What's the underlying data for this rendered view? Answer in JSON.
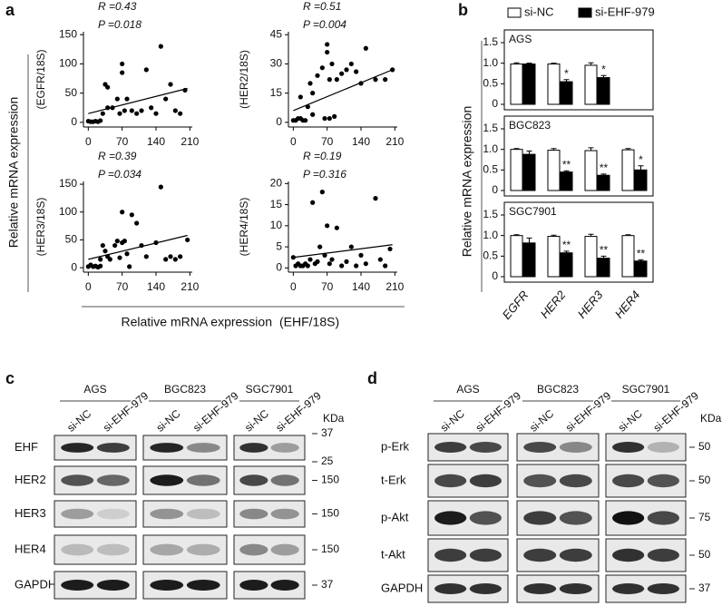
{
  "panel_labels": [
    "a",
    "b",
    "c",
    "d"
  ],
  "shared": {
    "scatter_ylabel": "Relative mRNA expression",
    "scatter_xlabel": "Relative mRNA expression",
    "scatter_xlabel_ratio": "(EHF/18S)",
    "bar_ylabel": "Relative mRNA expression"
  },
  "chart_data": [
    {
      "type": "scatter",
      "ylabel": "(EGFR/18S)",
      "annotations": [
        "R =0.43",
        "P =0.018"
      ],
      "color": "#000000",
      "x": [
        0,
        5,
        10,
        15,
        20,
        25,
        30,
        35,
        40,
        40,
        50,
        60,
        65,
        70,
        70,
        75,
        80,
        90,
        100,
        110,
        120,
        130,
        140,
        150,
        160,
        170,
        180,
        190,
        200
      ],
      "values": [
        2,
        1,
        1,
        2,
        1,
        3,
        15,
        65,
        60,
        25,
        25,
        40,
        15,
        85,
        100,
        20,
        40,
        20,
        15,
        20,
        90,
        25,
        15,
        130,
        40,
        65,
        20,
        15,
        55
      ],
      "fit": {
        "x": [
          0,
          205
        ],
        "y": [
          15,
          58
        ]
      },
      "xlim": [
        -10,
        215
      ],
      "ylim": [
        -8,
        155
      ],
      "xticks": [
        0,
        70,
        140,
        210
      ],
      "yticks": [
        0,
        50,
        100,
        150
      ]
    },
    {
      "type": "scatter",
      "ylabel": "(HER2/18S)",
      "annotations": [
        "R =0.51",
        "P =0.004"
      ],
      "color": "#000000",
      "x": [
        0,
        5,
        10,
        15,
        20,
        25,
        15,
        30,
        35,
        40,
        40,
        50,
        60,
        65,
        70,
        70,
        75,
        75,
        80,
        85,
        90,
        100,
        110,
        120,
        130,
        140,
        150,
        170,
        190,
        205
      ],
      "values": [
        1,
        1,
        2,
        2,
        1,
        1,
        13,
        8,
        20,
        4,
        15,
        24,
        28,
        2,
        40,
        36,
        2,
        22,
        30,
        3,
        22,
        25,
        27,
        30,
        26,
        20,
        38,
        22,
        22,
        27
      ],
      "fit": {
        "x": [
          0,
          205
        ],
        "y": [
          6,
          27
        ]
      },
      "xlim": [
        -10,
        215
      ],
      "ylim": [
        -2.4,
        46.5
      ],
      "xticks": [
        0,
        70,
        140,
        210
      ],
      "yticks": [
        0,
        15,
        30,
        45
      ]
    },
    {
      "type": "scatter",
      "ylabel": "(HER3/18S)",
      "annotations": [
        "R =0.39",
        "P =0.034"
      ],
      "color": "#000000",
      "x": [
        0,
        5,
        10,
        15,
        20,
        25,
        25,
        30,
        35,
        40,
        45,
        55,
        60,
        65,
        70,
        70,
        75,
        80,
        85,
        90,
        100,
        110,
        120,
        140,
        150,
        160,
        170,
        180,
        190,
        205
      ],
      "values": [
        2,
        5,
        2,
        3,
        1,
        3,
        15,
        40,
        30,
        20,
        15,
        40,
        48,
        18,
        45,
        100,
        48,
        25,
        2,
        95,
        80,
        40,
        20,
        45,
        145,
        15,
        20,
        15,
        20,
        50
      ],
      "fit": {
        "x": [
          0,
          205
        ],
        "y": [
          15,
          58
        ]
      },
      "xlim": [
        -10,
        215
      ],
      "ylim": [
        -8,
        155
      ],
      "xticks": [
        0,
        70,
        140,
        210
      ],
      "yticks": [
        0,
        50,
        100,
        150
      ]
    },
    {
      "type": "scatter",
      "ylabel": "(HER4/18S)",
      "annotations": [
        "R =0.19",
        "P =0.316"
      ],
      "color": "#000000",
      "x": [
        0,
        5,
        10,
        15,
        20,
        25,
        30,
        35,
        40,
        45,
        50,
        55,
        60,
        65,
        70,
        75,
        80,
        90,
        100,
        110,
        120,
        130,
        140,
        150,
        170,
        180,
        190,
        200
      ],
      "values": [
        2.5,
        0.5,
        1,
        0.5,
        0.5,
        1,
        0.5,
        2,
        15.5,
        1,
        1.5,
        5,
        18,
        3,
        10,
        1,
        2,
        9.5,
        0.5,
        1.5,
        5,
        0.5,
        3,
        1,
        16.5,
        2,
        0.5,
        4.5
      ],
      "fit": {
        "x": [
          0,
          205
        ],
        "y": [
          2.5,
          5.5
        ]
      },
      "xlim": [
        -10,
        215
      ],
      "ylim": [
        -1,
        20.5
      ],
      "xticks": [
        0,
        70,
        140,
        210
      ],
      "yticks": [
        0,
        5,
        10,
        15,
        20
      ]
    },
    {
      "type": "bar",
      "title": "AGS",
      "series": [
        {
          "name": "si-NC",
          "color": "#ffffff",
          "values": [
            0.98,
            0.98,
            0.95,
            null
          ],
          "errors": [
            0.03,
            0.02,
            0.06,
            null
          ]
        },
        {
          "name": "si-EHF-979",
          "color": "#000000",
          "values": [
            0.98,
            0.55,
            0.65,
            null
          ],
          "errors": [
            0.02,
            0.05,
            0.05,
            null
          ],
          "annotations": [
            null,
            "*",
            "*",
            null
          ]
        }
      ],
      "ylim": [
        0,
        1.5
      ],
      "yticks": [
        0,
        0.5,
        {
          "value": 1,
          "label": "1.0"
        },
        1.5
      ]
    },
    {
      "type": "bar",
      "title": "BGC823",
      "series": [
        {
          "color": "#ffffff",
          "values": [
            1.0,
            0.98,
            0.97,
            0.99
          ],
          "errors": [
            0.02,
            0.04,
            0.07,
            0.03
          ]
        },
        {
          "color": "#000000",
          "values": [
            0.88,
            0.45,
            0.37,
            0.5
          ],
          "errors": [
            0.08,
            0.03,
            0.03,
            0.1
          ],
          "annotations": [
            null,
            "**",
            "**",
            "*"
          ]
        }
      ],
      "ylim": [
        0,
        1.5
      ],
      "yticks": [
        0,
        0.5,
        {
          "value": 1,
          "label": "1.0"
        },
        1.5
      ]
    },
    {
      "type": "bar",
      "title": "SGC7901",
      "categories": [
        "EGFR",
        "HER2",
        "HER3",
        "HER4"
      ],
      "series": [
        {
          "color": "#ffffff",
          "values": [
            1.0,
            0.98,
            0.98,
            1.0
          ],
          "errors": [
            0.02,
            0.03,
            0.05,
            0.02
          ]
        },
        {
          "color": "#000000",
          "values": [
            0.82,
            0.58,
            0.45,
            0.38
          ],
          "errors": [
            0.12,
            0.04,
            0.05,
            0.03
          ],
          "annotations": [
            null,
            "**",
            "**",
            "**"
          ]
        }
      ],
      "ylim": [
        0,
        1.5
      ],
      "yticks": [
        0,
        0.5,
        {
          "value": 1,
          "label": "1.0"
        },
        1.5
      ]
    }
  ],
  "blots": [
    {
      "groups": [
        "AGS",
        "BGC823",
        "SGC7901"
      ],
      "lanes": [
        "si-NC",
        "si-EHF-979"
      ],
      "unit": "KDa",
      "rows": [
        {
          "label": "EHF",
          "markers": [
            37,
            25
          ]
        },
        {
          "label": "HER2",
          "markers": [
            150
          ]
        },
        {
          "label": "HER3",
          "markers": [
            150
          ]
        },
        {
          "label": "HER4",
          "markers": [
            150
          ]
        },
        {
          "label": "GAPDH",
          "markers": [
            37
          ]
        }
      ]
    },
    {
      "groups": [
        "AGS",
        "BGC823",
        "SGC7901"
      ],
      "lanes": [
        "si-NC",
        "si-EHF-979"
      ],
      "unit": "KDa",
      "rows": [
        {
          "label": "p-Erk",
          "markers": [
            50
          ]
        },
        {
          "label": "t-Erk",
          "markers": [
            50
          ]
        },
        {
          "label": "p-Akt",
          "markers": [
            75
          ]
        },
        {
          "label": "t-Akt",
          "markers": [
            50
          ]
        },
        {
          "label": "GAPDH",
          "markers": [
            37
          ]
        }
      ]
    }
  ]
}
